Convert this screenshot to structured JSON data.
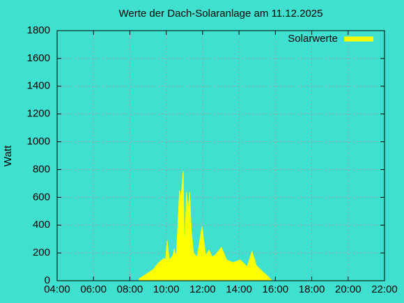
{
  "chart_data": {
    "type": "area",
    "title": "Werte der Dach-Solaranlage am 11.12.2025",
    "ylabel": "Watt",
    "series": [
      {
        "name": "Solarwerte",
        "color": "#ffff00",
        "x": [
          "08:31",
          "09:17",
          "09:35",
          "09:52",
          "09:58",
          "10:03",
          "10:10",
          "10:22",
          "10:26",
          "10:33",
          "10:38",
          "10:44",
          "10:49",
          "10:56",
          "11:00",
          "11:07",
          "11:12",
          "11:17",
          "11:23",
          "11:30",
          "11:42",
          "11:58",
          "12:10",
          "12:21",
          "12:32",
          "12:44",
          "13:02",
          "13:19",
          "13:41",
          "14:04",
          "14:27",
          "14:43",
          "14:57",
          "15:20",
          "15:36",
          "15:48"
        ],
        "values": [
          15,
          80,
          130,
          160,
          150,
          290,
          150,
          180,
          230,
          170,
          380,
          650,
          600,
          790,
          200,
          640,
          500,
          640,
          350,
          200,
          170,
          390,
          180,
          220,
          170,
          190,
          240,
          150,
          130,
          150,
          100,
          210,
          110,
          60,
          30,
          0
        ]
      }
    ],
    "xlim": [
      "04:00",
      "22:00"
    ],
    "xticks": [
      "04:00",
      "06:00",
      "08:00",
      "10:00",
      "12:00",
      "14:00",
      "16:00",
      "18:00",
      "20:00",
      "22:00"
    ],
    "ylim": [
      0,
      1800
    ],
    "yticks": [
      0,
      200,
      400,
      600,
      800,
      1000,
      1200,
      1400,
      1600,
      1800
    ],
    "grid": true,
    "legend": "top-right"
  }
}
